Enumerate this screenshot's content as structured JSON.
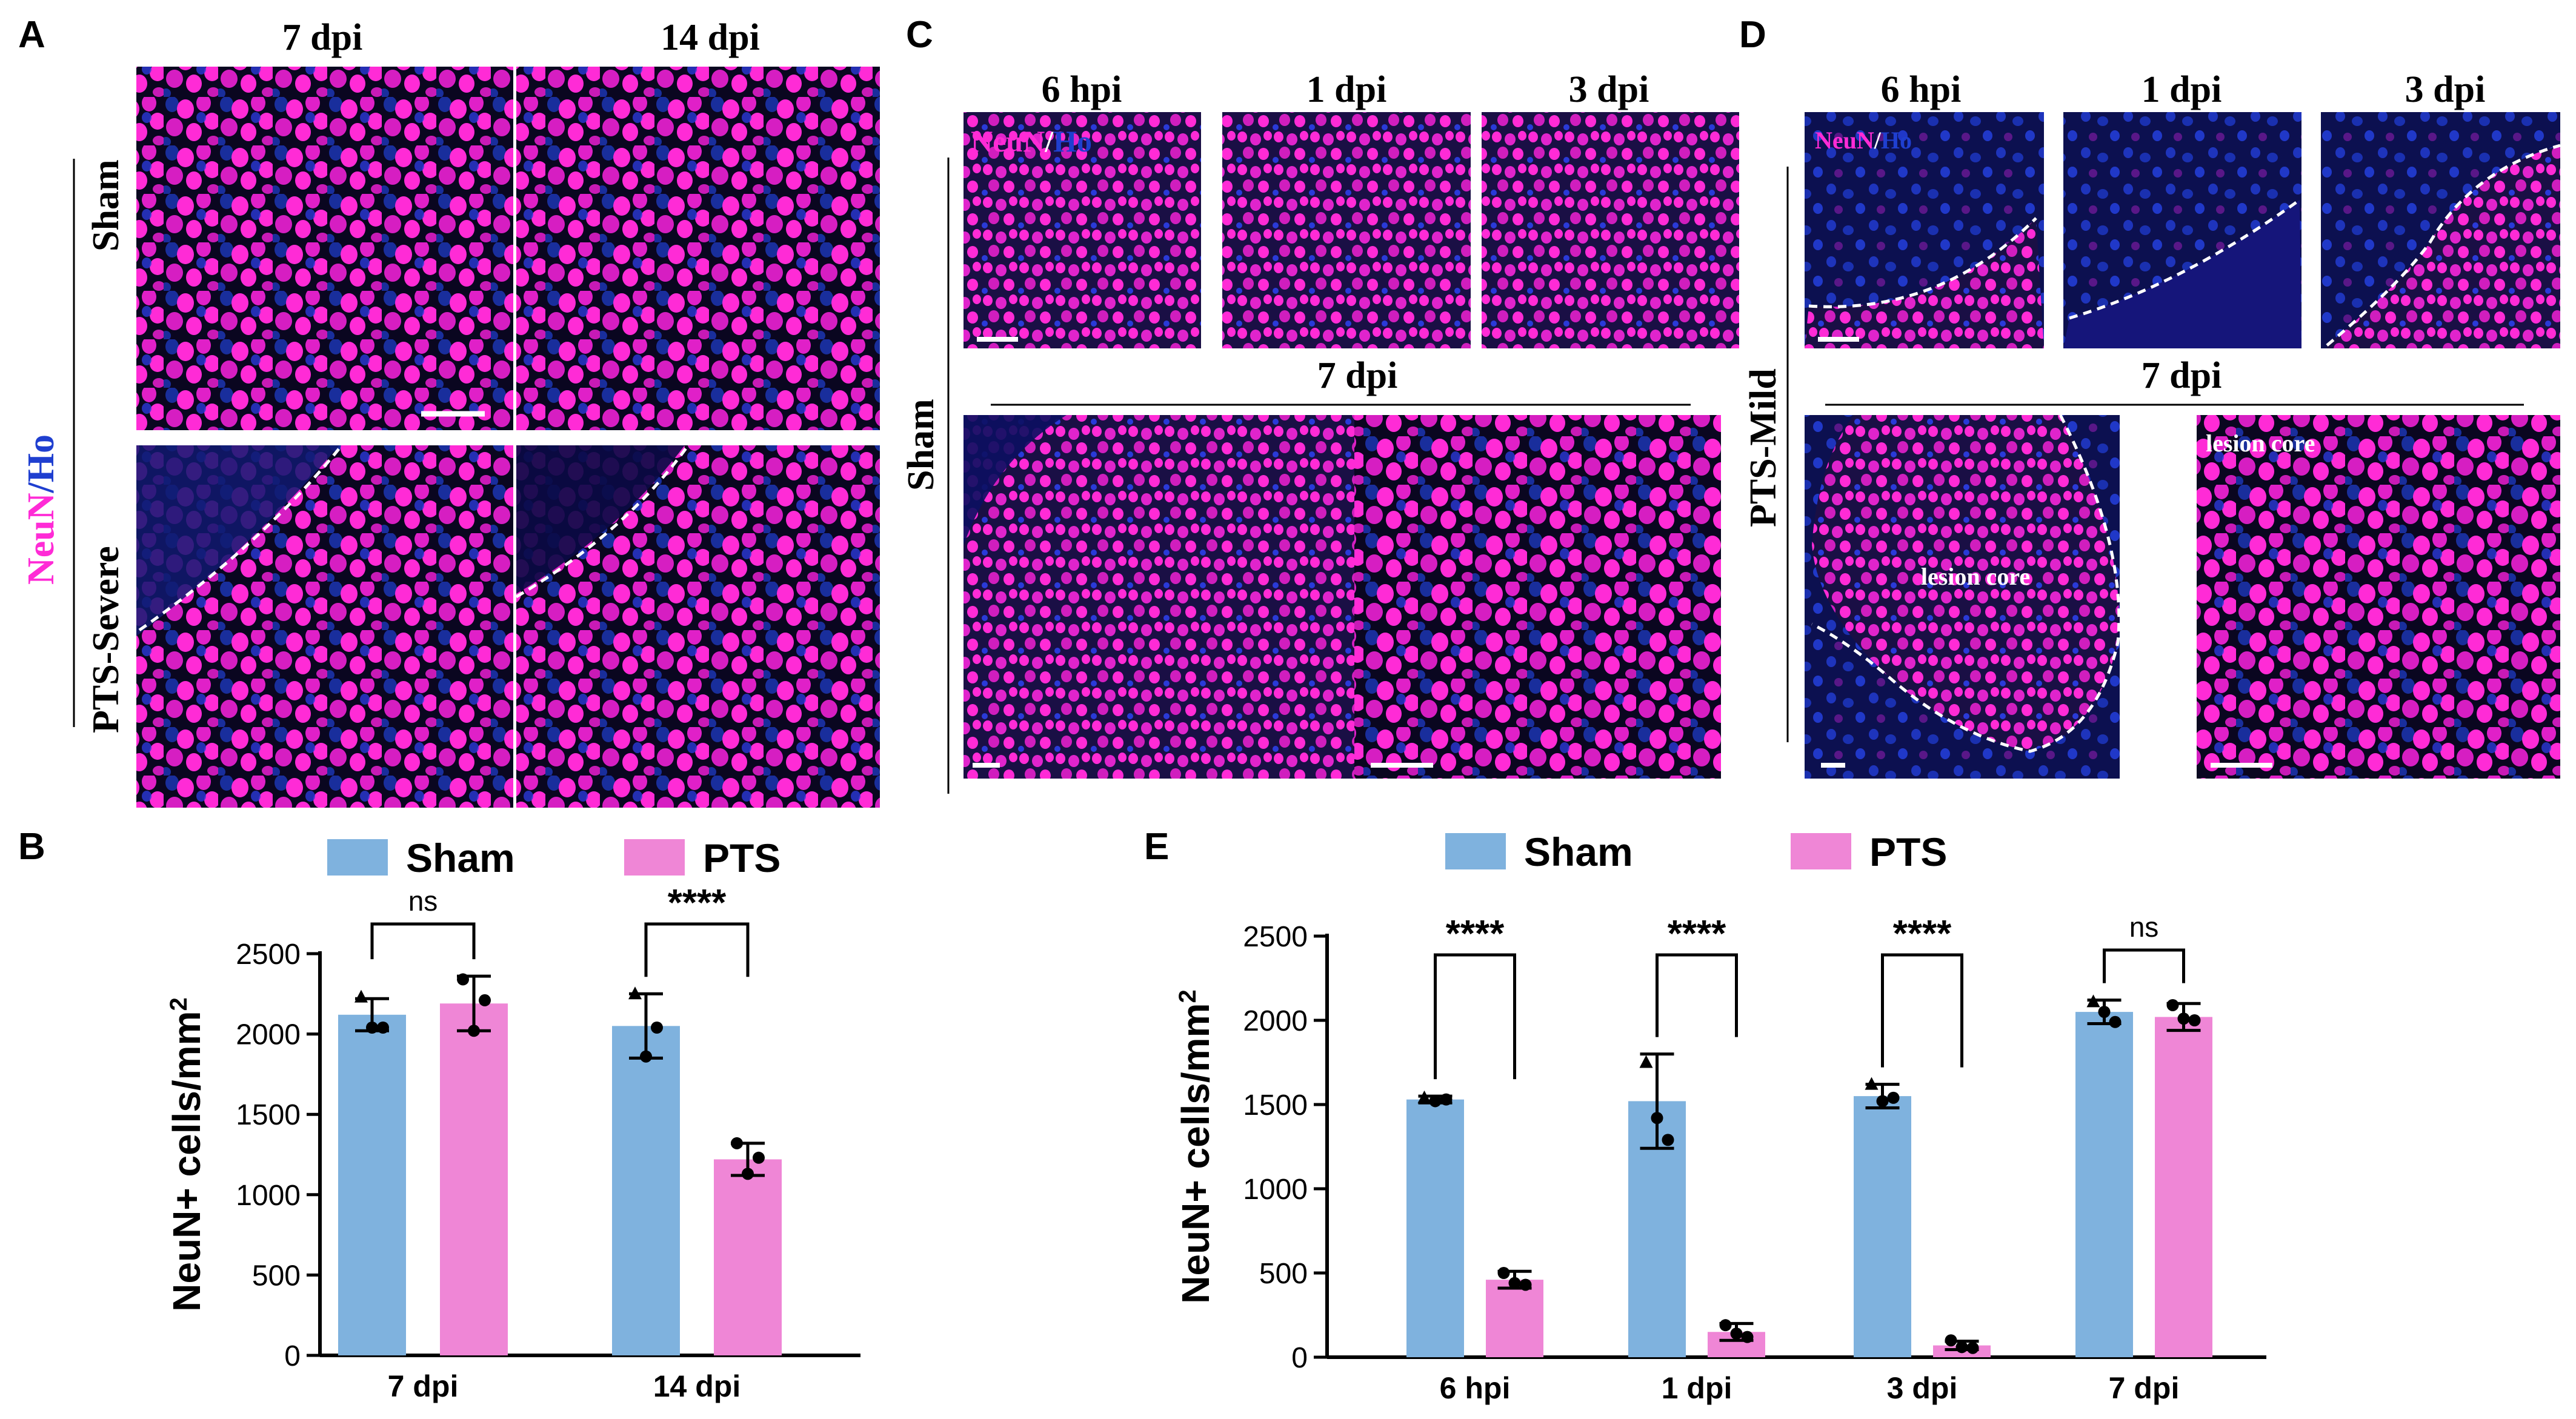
{
  "panels": {
    "A": {
      "letter": "A",
      "col_titles": [
        "7 dpi",
        "14 dpi"
      ],
      "row_labels": [
        "Sham",
        "PTS-Severe"
      ],
      "stain": {
        "neun": "NeuN",
        "slash": "/",
        "ho": "Ho"
      }
    },
    "C": {
      "letter": "C",
      "top_titles": [
        "6 hpi",
        "1 dpi",
        "3 dpi"
      ],
      "bottom_title": "7 dpi",
      "row_label": "Sham",
      "stain": {
        "neun": "NeuN",
        "slash": "/",
        "ho": "Ho"
      }
    },
    "D": {
      "letter": "D",
      "top_titles": [
        "6 hpi",
        "1 dpi",
        "3 dpi"
      ],
      "bottom_title": "7 dpi",
      "row_label": "PTS-Mild",
      "stain": {
        "neun": "NeuN",
        "slash": "/",
        "ho": "Ho"
      },
      "annotations": [
        "lesion core",
        "lesion core"
      ]
    },
    "B": {
      "letter": "B"
    },
    "E": {
      "letter": "E"
    }
  },
  "colors": {
    "sham": "#7fb2de",
    "pts": "#ef86d6",
    "neun": "#ff2bd6",
    "ho": "#1f3fd0",
    "tissue": "#0a0620"
  },
  "chart_data": [
    {
      "id": "B",
      "type": "bar",
      "categories": [
        "7 dpi",
        "14 dpi"
      ],
      "series": [
        {
          "name": "Sham",
          "values": [
            2120,
            2050
          ],
          "sd": [
            100,
            200
          ],
          "points": [
            [
              2230,
              2040,
              2040
            ],
            [
              2250,
              1860,
              2040
            ]
          ]
        },
        {
          "name": "PTS",
          "values": [
            2190,
            1220
          ],
          "sd": [
            170,
            100
          ],
          "points": [
            [
              2340,
              2020,
              2210
            ],
            [
              1320,
              1130,
              1230
            ]
          ]
        }
      ],
      "ylabel": "NeuN+ cells/mm2",
      "ylim": [
        0,
        2500
      ],
      "yticks": [
        0,
        500,
        1000,
        1500,
        2000,
        2500
      ],
      "significance": [
        "ns",
        "****"
      ],
      "legend": [
        "Sham",
        "PTS"
      ]
    },
    {
      "id": "E",
      "type": "bar",
      "categories": [
        "6 hpi",
        "1 dpi",
        "3 dpi",
        "7 dpi"
      ],
      "series": [
        {
          "name": "Sham",
          "values": [
            1530,
            1520,
            1550,
            2050
          ],
          "sd": [
            20,
            280,
            70,
            70
          ],
          "points": [
            [
              1540,
              1520,
              1530
            ],
            [
              1750,
              1420,
              1290
            ],
            [
              1620,
              1520,
              1540
            ],
            [
              2110,
              2050,
              1990
            ]
          ]
        },
        {
          "name": "PTS",
          "values": [
            460,
            150,
            70,
            2020
          ],
          "sd": [
            50,
            50,
            25,
            80
          ],
          "points": [
            [
              500,
              440,
              430
            ],
            [
              190,
              140,
              120
            ],
            [
              100,
              60,
              55
            ],
            [
              2090,
              2010,
              2000
            ]
          ]
        }
      ],
      "ylabel": "NeuN+ cells/mm2",
      "ylim": [
        0,
        2500
      ],
      "yticks": [
        0,
        500,
        1000,
        1500,
        2000,
        2500
      ],
      "significance": [
        "****",
        "****",
        "****",
        "ns"
      ],
      "legend": [
        "Sham",
        "PTS"
      ]
    }
  ]
}
